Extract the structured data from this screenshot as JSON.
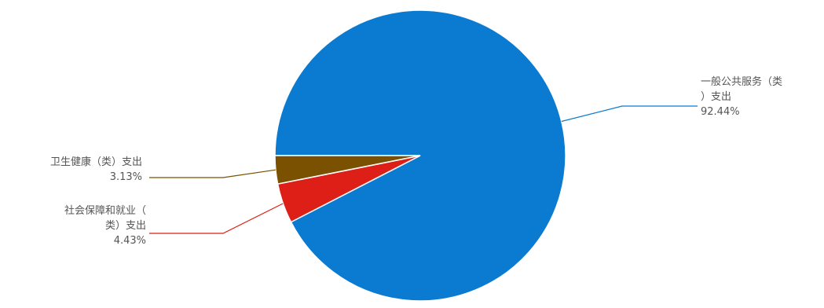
{
  "chart_data": {
    "type": "pie",
    "title": "",
    "slices": [
      {
        "label_lines": [
          "一般公共服务（类",
          "）支出"
        ],
        "pct_text": "92.44%",
        "value": 92.44,
        "color": "#0a7bd0"
      },
      {
        "label_lines": [
          "社会保障和就业（",
          "类）支出"
        ],
        "pct_text": "4.43%",
        "value": 4.43,
        "color": "#dd1f17"
      },
      {
        "label_lines": [
          "卫生健康（类）支出"
        ],
        "pct_text": "3.13%",
        "value": 3.13,
        "color": "#7a5100"
      }
    ]
  }
}
